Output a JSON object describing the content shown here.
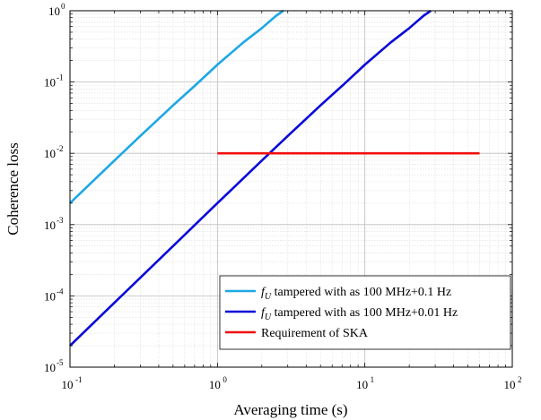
{
  "chart_data": {
    "type": "line",
    "xlabel": "Averaging time (s)",
    "ylabel": "Coherence loss",
    "x_scale": "log",
    "y_scale": "log",
    "xlim": [
      0.1,
      100
    ],
    "ylim": [
      1e-05,
      1
    ],
    "x_ticks": [
      {
        "base": "10",
        "exp": "-1",
        "value": 0.1
      },
      {
        "base": "10",
        "exp": "0",
        "value": 1
      },
      {
        "base": "10",
        "exp": "1",
        "value": 10
      },
      {
        "base": "10",
        "exp": "2",
        "value": 100
      }
    ],
    "y_ticks": [
      {
        "base": "10",
        "exp": "-5",
        "value": 1e-05
      },
      {
        "base": "10",
        "exp": "-4",
        "value": 0.0001
      },
      {
        "base": "10",
        "exp": "-3",
        "value": 0.001
      },
      {
        "base": "10",
        "exp": "-2",
        "value": 0.01
      },
      {
        "base": "10",
        "exp": "-1",
        "value": 0.1
      },
      {
        "base": "10",
        "exp": "0",
        "value": 1
      }
    ],
    "grid": true,
    "minor_grid": true,
    "legend_position": "bottom-right",
    "series": [
      {
        "name": "fU tampered with as 100 MHz+0.1 Hz",
        "legend_label": {
          "italic": "f",
          "sub": "U",
          "rest": " tampered with as 100 MHz+0.1 Hz"
        },
        "color": "#1ea7e6",
        "x": [
          0.1,
          0.2,
          0.3,
          0.5,
          0.7,
          1,
          1.5,
          2,
          2.5,
          2.8
        ],
        "y": [
          0.002,
          0.0079,
          0.0175,
          0.047,
          0.088,
          0.175,
          0.36,
          0.57,
          0.85,
          1.0
        ]
      },
      {
        "name": "fU tampered with as 100 MHz+0.01 Hz",
        "legend_label": {
          "italic": "f",
          "sub": "U",
          "rest": " tampered with as 100 MHz+0.01 Hz"
        },
        "color": "#0a0ad8",
        "x": [
          0.1,
          0.2,
          0.5,
          1,
          2,
          3,
          5,
          7,
          10,
          15,
          20,
          25,
          28
        ],
        "y": [
          2e-05,
          8e-05,
          0.0005,
          0.002,
          0.0079,
          0.0175,
          0.047,
          0.088,
          0.175,
          0.36,
          0.57,
          0.85,
          1.0
        ]
      },
      {
        "name": "Requirement of SKA",
        "legend_label": {
          "italic": "",
          "sub": "",
          "rest": "Requirement of SKA"
        },
        "color": "#f01010",
        "x": [
          1,
          60
        ],
        "y": [
          0.01,
          0.01
        ]
      }
    ]
  }
}
